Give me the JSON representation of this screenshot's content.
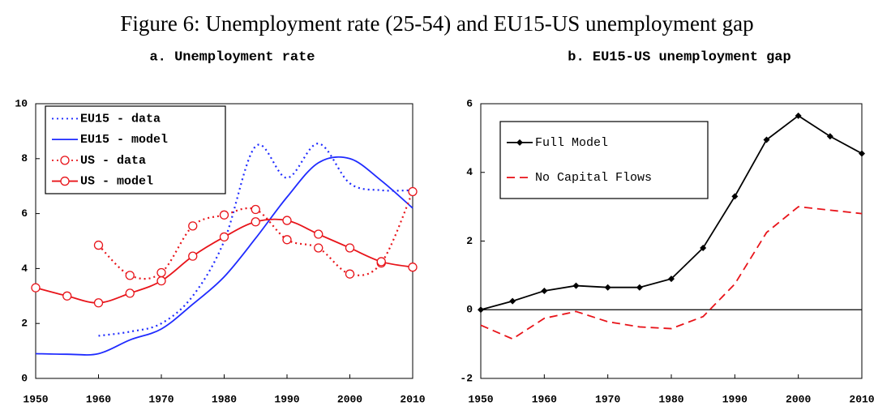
{
  "figure_title": "Figure 6: Unemployment rate (25-54) and EU15-US unemployment gap",
  "chart_data": [
    {
      "type": "line",
      "title": "a.  Unemployment rate",
      "smooth": true,
      "legend": "upper left",
      "x": [
        1950,
        1955,
        1960,
        1965,
        1970,
        1975,
        1980,
        1985,
        1990,
        1995,
        2000,
        2005,
        2010
      ],
      "xlim": [
        1950,
        2010
      ],
      "xticks": [
        1950,
        1960,
        1970,
        1980,
        1990,
        2000,
        2010
      ],
      "ylim": [
        0,
        10
      ],
      "yticks": [
        0,
        2,
        4,
        6,
        8,
        10
      ],
      "series": [
        {
          "name": "EU15 - data",
          "color": "#1f2bff",
          "style": "dotted",
          "marker": "none",
          "values": [
            null,
            null,
            1.55,
            1.7,
            2.0,
            3.0,
            5.0,
            8.45,
            7.3,
            8.55,
            7.1,
            6.85,
            6.85
          ]
        },
        {
          "name": "EU15 - model",
          "color": "#1f2bff",
          "style": "solid",
          "marker": "none",
          "values": [
            0.9,
            0.88,
            0.9,
            1.4,
            1.8,
            2.7,
            3.7,
            5.1,
            6.6,
            7.85,
            8.0,
            7.2,
            6.2
          ]
        },
        {
          "name": "US - data",
          "color": "#e8141a",
          "style": "dotted",
          "marker": "circle",
          "values": [
            null,
            null,
            4.85,
            3.75,
            3.85,
            5.55,
            5.95,
            6.15,
            5.05,
            4.75,
            3.8,
            4.2,
            6.8
          ]
        },
        {
          "name": "US - model",
          "color": "#e8141a",
          "style": "solid",
          "marker": "circle",
          "values": [
            3.3,
            3.0,
            2.75,
            3.1,
            3.55,
            4.45,
            5.15,
            5.7,
            5.75,
            5.25,
            4.75,
            4.25,
            4.05
          ]
        }
      ]
    },
    {
      "type": "line",
      "title": "b.  EU15-US unemployment gap",
      "smooth": false,
      "legend": "upper left",
      "zero_line": true,
      "x": [
        1950,
        1955,
        1960,
        1965,
        1970,
        1975,
        1980,
        1985,
        1990,
        1995,
        2000,
        2005,
        2010
      ],
      "xlim": [
        1950,
        2010
      ],
      "xticks": [
        1950,
        1960,
        1970,
        1980,
        1990,
        2000,
        2010
      ],
      "ylim": [
        -2,
        6
      ],
      "yticks": [
        -2,
        0,
        2,
        4,
        6
      ],
      "series": [
        {
          "name": "Full Model",
          "color": "#000000",
          "style": "solid",
          "marker": "diamond",
          "values": [
            0,
            0.25,
            0.55,
            0.7,
            0.65,
            0.65,
            0.9,
            1.8,
            3.3,
            4.95,
            5.65,
            5.05,
            4.55
          ]
        },
        {
          "name": "No Capital Flows",
          "color": "#e8141a",
          "style": "dashed",
          "marker": "none",
          "values": [
            -0.45,
            -0.85,
            -0.25,
            -0.05,
            -0.35,
            -0.5,
            -0.55,
            -0.2,
            0.75,
            2.25,
            3.0,
            2.9,
            2.8
          ]
        }
      ]
    }
  ]
}
